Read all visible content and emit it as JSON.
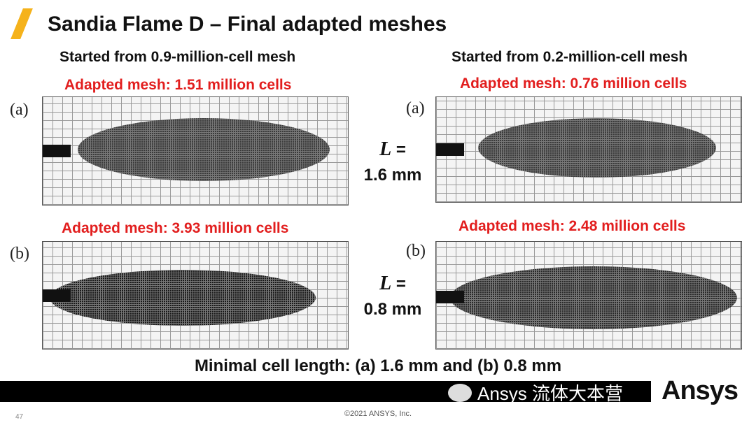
{
  "title": "Sandia Flame D – Final adapted meshes",
  "left": {
    "heading": "Started from 0.9-million-cell mesh",
    "a_caption": "Adapted mesh: 1.51 million cells",
    "b_caption": "Adapted mesh: 3.93 million cells"
  },
  "right": {
    "heading": "Started from 0.2-million-cell mesh",
    "a_caption": "Adapted mesh: 0.76 million cells",
    "b_caption": "Adapted mesh: 2.48 million cells"
  },
  "labels": {
    "a": "(a)",
    "b": "(b)"
  },
  "length_a": {
    "symbol": "L",
    "eq": "=",
    "value": "1.6 mm"
  },
  "length_b": {
    "symbol": "L",
    "eq": "=",
    "value": "0.8 mm"
  },
  "summary": "Minimal cell length: (a) 1.6 mm and (b) 0.8 mm",
  "watermark": "Ansys 流体大本营",
  "logo": "Ansys",
  "copyright": "©2021 ANSYS, Inc.",
  "page_number": "47",
  "colors": {
    "accent": "#f5b21b",
    "caption": "#e21e1e"
  }
}
